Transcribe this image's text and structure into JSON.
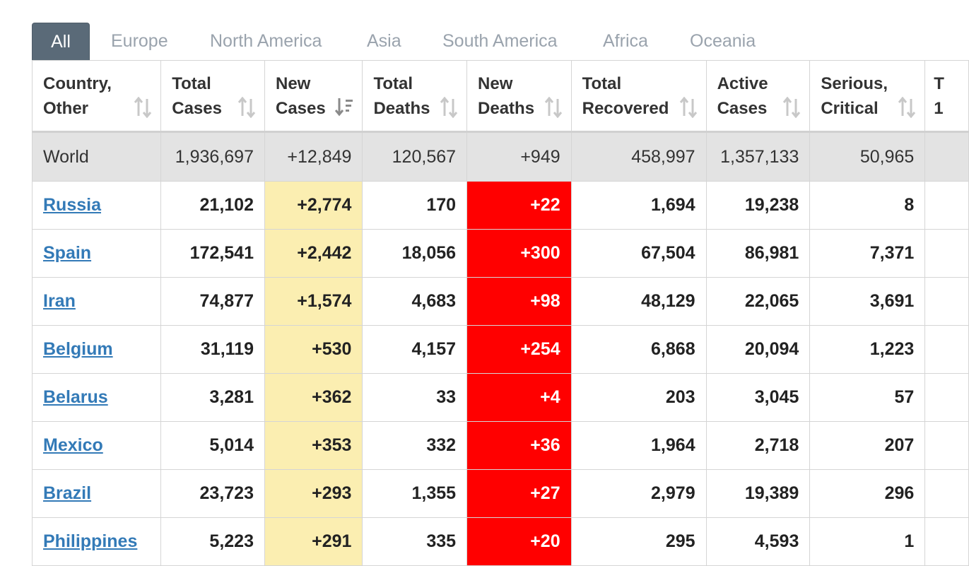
{
  "tabs": [
    {
      "label": "All",
      "active": true
    },
    {
      "label": "Europe"
    },
    {
      "label": "North America"
    },
    {
      "label": "Asia"
    },
    {
      "label": "South America"
    },
    {
      "label": "Africa"
    },
    {
      "label": "Oceania"
    }
  ],
  "table": {
    "headers": [
      {
        "line1": "Country,",
        "line2": "Other",
        "sort": "sort-icon"
      },
      {
        "line1": "Total",
        "line2": "Cases",
        "sort": "sort-icon"
      },
      {
        "line1": "New",
        "line2": "Cases",
        "sort": "sort-desc-icon"
      },
      {
        "line1": "Total",
        "line2": "Deaths",
        "sort": "sort-icon"
      },
      {
        "line1": "New",
        "line2": "Deaths",
        "sort": "sort-icon"
      },
      {
        "line1": "Total",
        "line2": "Recovered",
        "sort": "sort-icon"
      },
      {
        "line1": "Active",
        "line2": "Cases",
        "sort": "sort-icon"
      },
      {
        "line1": "Serious,",
        "line2": "Critical",
        "sort": "sort-icon"
      },
      {
        "line1": "T",
        "line2": "1"
      }
    ],
    "world": [
      "World",
      "1,936,697",
      "+12,849",
      "120,567",
      "+949",
      "458,997",
      "1,357,133",
      "50,965"
    ],
    "rows": [
      [
        "Russia",
        "21,102",
        "+2,774",
        "170",
        "+22",
        "1,694",
        "19,238",
        "8"
      ],
      [
        "Spain",
        "172,541",
        "+2,442",
        "18,056",
        "+300",
        "67,504",
        "86,981",
        "7,371"
      ],
      [
        "Iran",
        "74,877",
        "+1,574",
        "4,683",
        "+98",
        "48,129",
        "22,065",
        "3,691"
      ],
      [
        "Belgium",
        "31,119",
        "+530",
        "4,157",
        "+254",
        "6,868",
        "20,094",
        "1,223"
      ],
      [
        "Belarus",
        "3,281",
        "+362",
        "33",
        "+4",
        "203",
        "3,045",
        "57"
      ],
      [
        "Mexico",
        "5,014",
        "+353",
        "332",
        "+36",
        "1,964",
        "2,718",
        "207"
      ],
      [
        "Brazil",
        "23,723",
        "+293",
        "1,355",
        "+27",
        "2,979",
        "19,389",
        "296"
      ],
      [
        "Philippines",
        "5,223",
        "+291",
        "335",
        "+20",
        "295",
        "4,593",
        "1"
      ]
    ]
  },
  "colors": {
    "active_tab": "#5a6a78",
    "link": "#337ab7",
    "new_cases_bg": "#fbeeb1",
    "new_deaths_bg": "#ff0000",
    "world_row_bg": "#e3e3e3"
  }
}
